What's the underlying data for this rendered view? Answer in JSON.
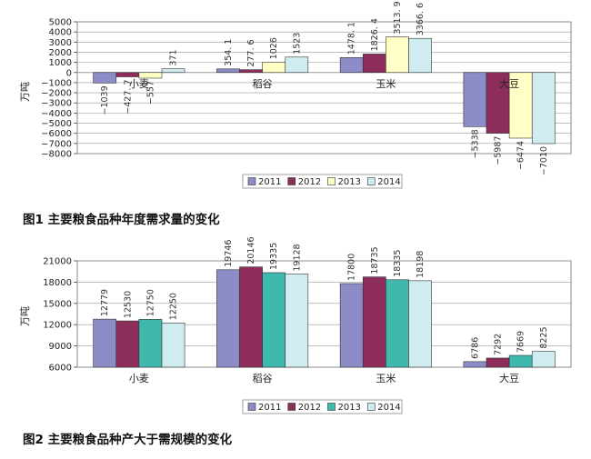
{
  "figures": [
    {
      "caption": "图1  主要粮食品种年度需求量的变化",
      "chart_data": {
        "type": "bar",
        "categories": [
          "小麦",
          "稻谷",
          "玉米",
          "大豆"
        ],
        "series": [
          {
            "name": "2011",
            "values": [
              -1039,
              354.1,
              1478.1,
              -5338
            ],
            "labels": [
              "−1039",
              "354. 1",
              "1478. 1",
              "−5338"
            ]
          },
          {
            "name": "2012",
            "values": [
              -427.7,
              277.6,
              1826.4,
              -5987
            ],
            "labels": [
              "−427. 7",
              "277. 6",
              "1826. 4",
              "−5987"
            ]
          },
          {
            "name": "2013",
            "values": [
              -557,
              1026,
              3513.9,
              -6474
            ],
            "labels": [
              "−557",
              "1026",
              "3513. 9",
              "−6474"
            ]
          },
          {
            "name": "2014",
            "values": [
              371,
              1523,
              3366.6,
              -7010
            ],
            "labels": [
              "371",
              "1523",
              "3366. 6",
              "−7010"
            ]
          }
        ],
        "ylabel": "万吨",
        "ylim": [
          -8000,
          5000
        ],
        "yticks": [
          5000,
          4000,
          3000,
          2000,
          1000,
          0,
          -1000,
          -2000,
          -3000,
          -4000,
          -5000,
          -6000,
          -7000,
          -8000
        ],
        "ytick_labels": [
          "5000",
          "4000",
          "3000",
          "2000",
          "1000",
          "0",
          "−1000",
          "−2000",
          "−3000",
          "−4000",
          "−5000",
          "−6000",
          "−7000",
          "−8000"
        ],
        "grid": true,
        "legend": "bottom"
      }
    },
    {
      "caption": "图2  主要粮食品种产大于需规模的变化",
      "chart_data": {
        "type": "bar",
        "categories": [
          "小麦",
          "稻谷",
          "玉米",
          "大豆"
        ],
        "series": [
          {
            "name": "2011",
            "values": [
              12779,
              19746,
              17800,
              6786
            ],
            "labels": [
              "12779",
              "19746",
              "17800",
              "6786"
            ]
          },
          {
            "name": "2012",
            "values": [
              12530,
              20146,
              18735,
              7292
            ],
            "labels": [
              "12530",
              "20146",
              "18735",
              "7292"
            ]
          },
          {
            "name": "2013",
            "values": [
              12750,
              19335,
              18335,
              7669
            ],
            "labels": [
              "12750",
              "19335",
              "18335",
              "7669"
            ]
          },
          {
            "name": "2014",
            "values": [
              12250,
              19128,
              18198,
              8225
            ],
            "labels": [
              "12250",
              "19128",
              "18198",
              "8225"
            ]
          }
        ],
        "ylabel": "万吨",
        "ylim": [
          6000,
          21000
        ],
        "yticks": [
          21000,
          18000,
          15000,
          12000,
          9000,
          6000
        ],
        "ytick_labels": [
          "21000",
          "18000",
          "15000",
          "12000",
          "9000",
          "6000"
        ],
        "grid": true,
        "legend": "bottom"
      }
    }
  ],
  "colors": {
    "fig1": [
      "#8c8cc7",
      "#8c2d5c",
      "#ffffc6",
      "#cfecf0"
    ],
    "fig2": [
      "#8c8cc7",
      "#8c2d5c",
      "#3fb8ad",
      "#cfecf0"
    ],
    "grid": "#9a9a9a",
    "bar_stroke": "#333333"
  }
}
